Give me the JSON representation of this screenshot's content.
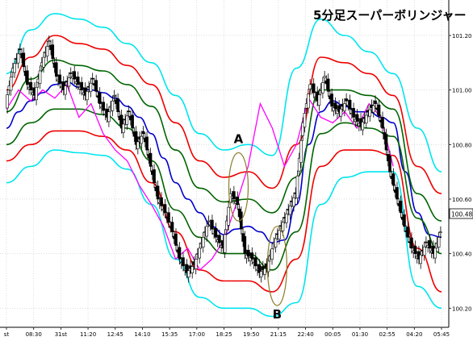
{
  "chart_data": {
    "type": "line",
    "title": "5分足スーパーボリンジャー",
    "price_badge": "100.48",
    "x_tick_labels": [
      "st",
      "08:30",
      "31st",
      "11:20",
      "12:45",
      "14:10",
      "15:35",
      "17:00",
      "18:25",
      "19:50",
      "21:15",
      "22:40",
      "00:05",
      "01:30",
      "02:55",
      "04:20",
      "05:45"
    ],
    "y_tick_labels": [
      "101.20",
      "101.00",
      "100.80",
      "100.60",
      "100.40",
      "100.20"
    ],
    "ylim": [
      100.13,
      101.33
    ],
    "grid": true,
    "annotations": [
      {
        "label": "A",
        "x_index": 9.6,
        "y_from": 100.52,
        "y_to": 100.77
      },
      {
        "label": "B",
        "x_index": 11.2,
        "y_from": 100.21,
        "y_to": 100.5
      }
    ],
    "colors": {
      "sigma3": "#00e5ee",
      "sigma2": "#ee0000",
      "sigma1": "#006400",
      "middle": "#0000cc",
      "lagging": "#ff00ff",
      "candle": "#000000",
      "annotation": "#8b7d2a",
      "grid": "#c8c8c8"
    },
    "series": [
      {
        "name": "",
        "role": "middle",
        "x": [
          0,
          0.5,
          1,
          1.5,
          2,
          2.5,
          3,
          3.5,
          4,
          4.5,
          5,
          5.5,
          6,
          6.5,
          7,
          7.5,
          8,
          8.5,
          9,
          9.5,
          10,
          10.5,
          11,
          11.5,
          12,
          12.5,
          13,
          13.5,
          14,
          14.5,
          15,
          15.5,
          16,
          16.5,
          17,
          17.5,
          18
        ],
        "values": [
          100.86,
          100.92,
          100.96,
          100.99,
          101.02,
          101.03,
          101.01,
          101.0,
          100.99,
          100.97,
          100.94,
          100.9,
          100.84,
          100.75,
          100.66,
          100.6,
          100.55,
          100.5,
          100.47,
          100.49,
          100.5,
          100.48,
          100.44,
          100.45,
          100.58,
          100.8,
          100.92,
          100.96,
          100.94,
          100.92,
          100.92,
          100.9,
          100.88,
          100.7,
          100.55,
          100.47,
          100.46
        ]
      },
      {
        "name": "",
        "role": "sigma1_upper",
        "x": [
          0,
          1,
          2,
          3,
          4,
          5,
          6,
          7,
          8,
          9,
          10,
          11,
          12,
          13,
          14,
          15,
          16,
          17,
          18
        ],
        "values": [
          100.92,
          101.04,
          101.11,
          101.09,
          101.07,
          101.02,
          100.94,
          100.78,
          100.64,
          100.59,
          100.6,
          100.55,
          100.68,
          101.0,
          101.0,
          100.98,
          100.93,
          100.62,
          100.52
        ]
      },
      {
        "name": "",
        "role": "sigma1_lower",
        "x": [
          0,
          1,
          2,
          3,
          4,
          5,
          6,
          7,
          8,
          9,
          10,
          11,
          12,
          13,
          14,
          15,
          16,
          17,
          18
        ],
        "values": [
          100.8,
          100.88,
          100.93,
          100.93,
          100.91,
          100.86,
          100.74,
          100.56,
          100.46,
          100.4,
          100.4,
          100.34,
          100.48,
          100.84,
          100.88,
          100.86,
          100.83,
          100.53,
          100.4
        ]
      },
      {
        "name": "",
        "role": "sigma2_upper",
        "x": [
          0,
          1,
          2,
          3,
          4,
          5,
          6,
          7,
          8,
          9,
          10,
          11,
          12,
          13,
          14,
          15,
          16,
          17,
          18
        ],
        "values": [
          101.0,
          101.12,
          101.2,
          101.17,
          101.15,
          101.09,
          101.02,
          100.88,
          100.74,
          100.68,
          100.7,
          100.64,
          100.8,
          101.12,
          101.1,
          101.06,
          100.98,
          100.72,
          100.62
        ]
      },
      {
        "name": "",
        "role": "sigma2_lower",
        "x": [
          0,
          1,
          2,
          3,
          4,
          5,
          6,
          7,
          8,
          9,
          10,
          11,
          12,
          13,
          14,
          15,
          16,
          17,
          18
        ],
        "values": [
          100.74,
          100.8,
          100.85,
          100.85,
          100.83,
          100.78,
          100.66,
          100.48,
          100.34,
          100.3,
          100.3,
          100.26,
          100.38,
          100.72,
          100.78,
          100.78,
          100.76,
          100.42,
          100.26
        ]
      },
      {
        "name": "",
        "role": "sigma3_upper",
        "x": [
          0,
          1,
          2,
          3,
          4,
          5,
          6,
          7,
          8,
          9,
          10,
          11,
          12,
          13,
          14,
          15,
          16,
          17,
          18
        ],
        "values": [
          101.06,
          101.22,
          101.28,
          101.26,
          101.23,
          101.17,
          101.1,
          100.98,
          100.84,
          100.78,
          100.8,
          100.76,
          101.08,
          101.26,
          101.2,
          101.14,
          101.06,
          100.86,
          100.7
        ]
      },
      {
        "name": "",
        "role": "sigma3_lower",
        "x": [
          0,
          1,
          2,
          3,
          4,
          5,
          6,
          7,
          8,
          9,
          10,
          11,
          12,
          13,
          14,
          15,
          16,
          17,
          18
        ],
        "values": [
          100.66,
          100.72,
          100.78,
          100.77,
          100.76,
          100.71,
          100.58,
          100.38,
          100.24,
          100.2,
          100.2,
          100.17,
          100.22,
          100.58,
          100.68,
          100.7,
          100.7,
          100.28,
          100.2
        ]
      },
      {
        "name": "",
        "role": "lagging",
        "x": [
          0,
          0.5,
          1,
          1.5,
          2,
          2.5,
          3,
          3.5,
          4,
          4.5,
          5,
          5.5,
          6,
          6.5,
          7,
          7.5,
          8,
          8.5,
          9,
          9.5,
          10,
          10.5,
          11,
          11.5,
          12,
          12.5,
          13,
          13.5,
          14,
          14.5,
          15,
          15.5,
          16
        ],
        "values": [
          100.93,
          101.0,
          100.96,
          101.0,
          100.97,
          101.02,
          100.9,
          100.95,
          100.84,
          100.78,
          100.74,
          100.65,
          100.58,
          100.5,
          100.38,
          100.42,
          100.34,
          100.38,
          100.45,
          100.58,
          100.72,
          100.95,
          100.86,
          100.72,
          100.8,
          100.97,
          100.9,
          100.88,
          100.92,
          100.86,
          100.95,
          100.9,
          100.72
        ]
      },
      {
        "name": "",
        "role": "price",
        "x": [
          0,
          0.3,
          0.6,
          0.9,
          1.2,
          1.5,
          1.8,
          2.1,
          2.4,
          2.7,
          3,
          3.3,
          3.6,
          3.9,
          4.2,
          4.5,
          4.8,
          5.1,
          5.4,
          5.7,
          6,
          6.3,
          6.6,
          6.9,
          7.2,
          7.5,
          7.8,
          8.1,
          8.4,
          8.7,
          9,
          9.3,
          9.6,
          9.9,
          10.2,
          10.5,
          10.8,
          11.1,
          11.4,
          11.7,
          12,
          12.3,
          12.6,
          12.9,
          13.2,
          13.5,
          13.8,
          14.1,
          14.4,
          14.7,
          15,
          15.3,
          15.6,
          15.9,
          16.2,
          16.5,
          16.8,
          17.1,
          17.4,
          17.7,
          18
        ],
        "values": [
          100.95,
          101.08,
          101.15,
          101.02,
          100.98,
          101.1,
          101.18,
          101.05,
          101.0,
          101.06,
          101.02,
          100.98,
          101.04,
          100.95,
          100.9,
          100.98,
          100.86,
          100.92,
          100.8,
          100.84,
          100.72,
          100.6,
          100.55,
          100.48,
          100.38,
          100.33,
          100.36,
          100.44,
          100.52,
          100.46,
          100.42,
          100.62,
          100.58,
          100.4,
          100.38,
          100.33,
          100.35,
          100.44,
          100.5,
          100.56,
          100.62,
          100.88,
          101.02,
          100.96,
          101.05,
          100.94,
          100.92,
          100.96,
          100.9,
          100.87,
          100.92,
          100.95,
          100.86,
          100.7,
          100.6,
          100.5,
          100.42,
          100.38,
          100.44,
          100.4,
          100.48
        ]
      }
    ]
  }
}
